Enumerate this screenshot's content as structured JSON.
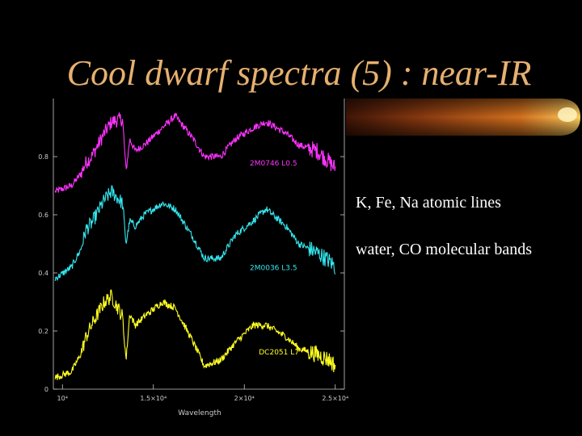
{
  "slide": {
    "title": "Cool dwarf spectra (5) : near-IR",
    "bullets": [
      "K, Fe, Na atomic lines",
      "water, CO molecular bands"
    ]
  },
  "colors": {
    "title": "#e6b070",
    "series_magenta": "#ff33ff",
    "series_cyan": "#33e6ee",
    "series_yellow": "#ffff22",
    "axis": "#cccccc",
    "accent_bar": "#c8641e"
  },
  "chart_data": {
    "type": "line",
    "xlabel": "Wavelength",
    "ylabel": "",
    "xlim": [
      9500,
      25500
    ],
    "ylim": [
      0,
      1.0
    ],
    "x_ticks": [
      {
        "value": 10000,
        "label": "10⁴"
      },
      {
        "value": 15000,
        "label": "1.5×10⁴"
      },
      {
        "value": 20000,
        "label": "2×10⁴"
      },
      {
        "value": 25000,
        "label": "2.5×10⁴"
      }
    ],
    "y_ticks": [
      {
        "value": 0,
        "label": "0"
      },
      {
        "value": 0.2,
        "label": "0.2"
      },
      {
        "value": 0.4,
        "label": "0.4"
      },
      {
        "value": 0.6,
        "label": "0.6"
      },
      {
        "value": 0.8,
        "label": "0.8"
      }
    ],
    "series": [
      {
        "name": "2M0746 L0.5",
        "color": "#ff33ff",
        "x": [
          9600,
          10500,
          11000,
          11300,
          11600,
          12300,
          12700,
          13300,
          13500,
          13700,
          14000,
          14500,
          15500,
          16200,
          17200,
          17800,
          18700,
          19500,
          20500,
          21200,
          22300,
          23000,
          24000,
          24700,
          25000
        ],
        "y": [
          0.68,
          0.7,
          0.74,
          0.78,
          0.8,
          0.88,
          0.92,
          0.93,
          0.75,
          0.86,
          0.82,
          0.84,
          0.9,
          0.94,
          0.86,
          0.8,
          0.8,
          0.86,
          0.9,
          0.92,
          0.88,
          0.84,
          0.82,
          0.78,
          0.76
        ]
      },
      {
        "name": "2M0036 L3.5",
        "color": "#33e6ee",
        "x": [
          9600,
          10500,
          11000,
          11300,
          11600,
          12300,
          12700,
          13300,
          13500,
          13700,
          14000,
          14500,
          15500,
          16200,
          17200,
          17800,
          18700,
          19500,
          20500,
          21200,
          22300,
          23000,
          24000,
          24700,
          25000
        ],
        "y": [
          0.38,
          0.42,
          0.48,
          0.55,
          0.57,
          0.65,
          0.68,
          0.64,
          0.5,
          0.58,
          0.56,
          0.6,
          0.64,
          0.62,
          0.52,
          0.45,
          0.45,
          0.53,
          0.58,
          0.62,
          0.56,
          0.5,
          0.47,
          0.44,
          0.42
        ]
      },
      {
        "name": "DC2051 L7",
        "color": "#ffff22",
        "x": [
          9600,
          10500,
          11000,
          11300,
          11600,
          12300,
          12700,
          13300,
          13500,
          13700,
          14000,
          14500,
          15500,
          16200,
          17200,
          17800,
          18700,
          19500,
          20500,
          21200,
          22300,
          23000,
          24000,
          24700,
          25000
        ],
        "y": [
          0.04,
          0.06,
          0.12,
          0.18,
          0.22,
          0.3,
          0.32,
          0.25,
          0.1,
          0.26,
          0.22,
          0.25,
          0.3,
          0.28,
          0.16,
          0.08,
          0.1,
          0.16,
          0.22,
          0.22,
          0.18,
          0.14,
          0.12,
          0.1,
          0.08
        ]
      }
    ],
    "annotations": [
      {
        "text": "2M0746 L0.5",
        "x": 20300,
        "y": 0.77,
        "series": 0
      },
      {
        "text": "2M0036 L3.5",
        "x": 20300,
        "y": 0.41,
        "series": 1
      },
      {
        "text": "DC2051 L7",
        "x": 20800,
        "y": 0.12,
        "series": 2
      }
    ]
  }
}
